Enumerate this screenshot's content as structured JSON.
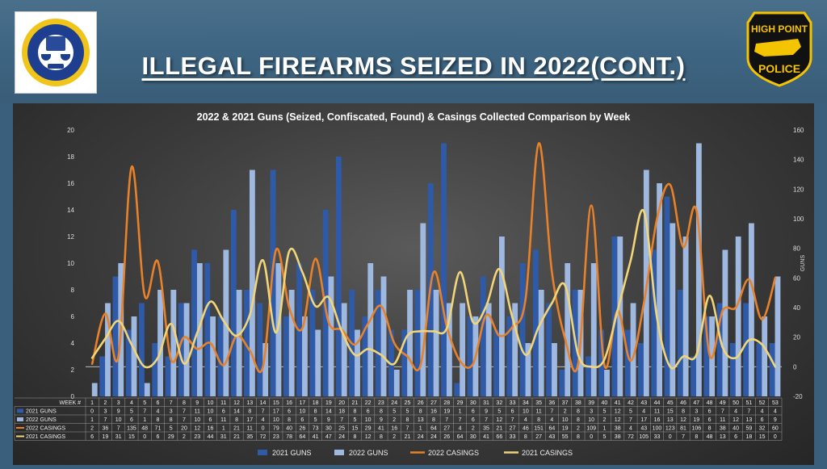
{
  "slide_title": "ILLEGAL FIREARMS SEIZED IN 2022(CONT.)",
  "logo_left": {
    "text": "COMMUNITY AGAINST VIOLENCE",
    "sub": "High Point, NC"
  },
  "logo_right": {
    "line1": "HIGH POINT",
    "line2": "POLICE"
  },
  "colors": {
    "g2021": "#2e5aa8",
    "g2022": "#9fb8e0",
    "c2022": "#e8822a",
    "c2021": "#f1d579"
  },
  "chart_data": {
    "type": "bar",
    "title": "2022 & 2021 Guns (Seized, Confiscated, Found) & Casings Collected Comparison by Week",
    "ylabel_right": "GUNS",
    "ylim_left": [
      0,
      20
    ],
    "ylim_right": [
      -20,
      160
    ],
    "y_ticks_left": [
      "0",
      "2",
      "4",
      "6",
      "8",
      "10",
      "12",
      "14",
      "16",
      "18",
      "20"
    ],
    "y_ticks_right": [
      "-20",
      "0",
      "20",
      "40",
      "60",
      "80",
      "100",
      "120",
      "140",
      "160"
    ],
    "table_header": "WEEK #",
    "categories": [
      "1",
      "2",
      "3",
      "4",
      "5",
      "6",
      "7",
      "8",
      "9",
      "10",
      "11",
      "12",
      "13",
      "14",
      "15",
      "16",
      "17",
      "18",
      "19",
      "20",
      "21",
      "22",
      "23",
      "24",
      "25",
      "26",
      "27",
      "28",
      "29",
      "30",
      "31",
      "32",
      "33",
      "34",
      "35",
      "36",
      "37",
      "38",
      "39",
      "40",
      "41",
      "42",
      "43",
      "44",
      "45",
      "46",
      "47",
      "48",
      "49",
      "50",
      "51",
      "52",
      "53"
    ],
    "series": [
      {
        "name": "2021 GUNS",
        "axis": "left",
        "kind": "bar",
        "values": [
          0,
          3,
          9,
          5,
          7,
          4,
          3,
          7,
          11,
          10,
          6,
          14,
          8,
          7,
          17,
          6,
          10,
          8,
          14,
          18,
          8,
          6,
          8,
          5,
          5,
          8,
          16,
          19,
          1,
          6,
          9,
          5,
          6,
          10,
          11,
          7,
          2,
          8,
          3,
          5,
          12,
          5,
          4,
          11,
          15,
          8,
          3,
          6,
          7,
          4,
          7,
          4,
          4
        ]
      },
      {
        "name": "2022 GUNS",
        "axis": "left",
        "kind": "bar",
        "values": [
          1,
          7,
          10,
          6,
          1,
          8,
          8,
          7,
          10,
          6,
          11,
          8,
          17,
          4,
          10,
          8,
          6,
          5,
          9,
          7,
          5,
          10,
          9,
          2,
          8,
          13,
          8,
          7,
          7,
          6,
          7,
          12,
          7,
          4,
          8,
          4,
          10,
          8,
          10,
          2,
          12,
          7,
          17,
          16,
          13,
          12,
          19,
          6,
          11,
          12,
          13,
          6,
          9
        ]
      },
      {
        "name": "2022 CASINGS",
        "axis": "right",
        "kind": "line",
        "values": [
          2,
          36,
          7,
          135,
          48,
          71,
          5,
          20,
          12,
          16,
          1,
          21,
          11,
          0,
          79,
          40,
          26,
          73,
          30,
          25,
          15,
          29,
          41,
          16,
          7,
          1,
          64,
          27,
          4,
          2,
          35,
          21,
          27,
          46,
          151,
          64,
          19,
          2,
          109,
          1,
          38,
          4,
          43,
          100,
          123,
          81,
          106,
          8,
          38,
          40,
          59,
          32,
          60
        ]
      },
      {
        "name": "2021 CASINGS",
        "axis": "right",
        "kind": "line",
        "values": [
          6,
          19,
          31,
          15,
          0,
          6,
          29,
          2,
          23,
          44,
          31,
          21,
          35,
          72,
          23,
          78,
          64,
          41,
          47,
          24,
          8,
          12,
          8,
          2,
          21,
          24,
          24,
          26,
          64,
          30,
          41,
          66,
          33,
          8,
          27,
          43,
          55,
          8,
          0,
          5,
          38,
          72,
          105,
          33,
          0,
          7,
          8,
          48,
          13,
          6,
          18,
          15,
          0
        ]
      }
    ]
  }
}
